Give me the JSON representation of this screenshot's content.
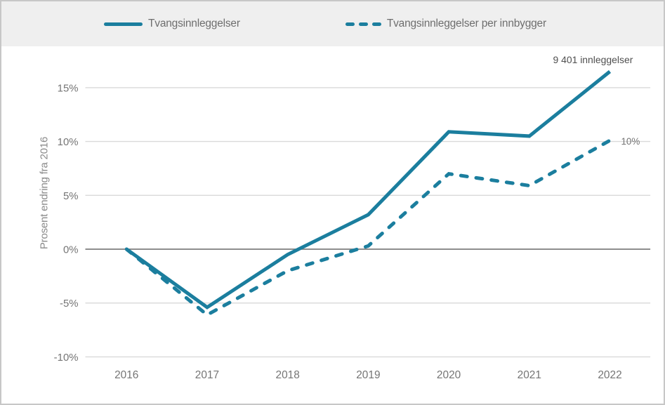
{
  "legend": {
    "items": [
      {
        "label": "Tvangsinnleggelser",
        "style": "solid"
      },
      {
        "label": "Tvangsinnleggelser per innbygger",
        "style": "dashed"
      }
    ]
  },
  "chart_data": {
    "type": "line",
    "title": "",
    "xlabel": "",
    "ylabel": "Prosent endring fra 2016",
    "categories": [
      "2016",
      "2017",
      "2018",
      "2019",
      "2020",
      "2021",
      "2022"
    ],
    "series": [
      {
        "name": "Tvangsinnleggelser",
        "style": "solid",
        "values": [
          0,
          -5.4,
          -0.5,
          3.2,
          10.9,
          10.5,
          16.5
        ]
      },
      {
        "name": "Tvangsinnleggelser per innbygger",
        "style": "dashed",
        "values": [
          0,
          -6.1,
          -2.0,
          0.3,
          7.0,
          5.9,
          10.1
        ]
      }
    ],
    "yticks": [
      15,
      10,
      5,
      0,
      -5,
      -10
    ],
    "ytick_labels": [
      "15%",
      "10%",
      "5%",
      "0%",
      "-5%",
      "-10%"
    ],
    "ylim": [
      -12.5,
      18.5
    ],
    "grid": "horizontal",
    "legend_position": "top",
    "annotations": [
      {
        "text": "9 401 innleggelser",
        "series": 0,
        "category": "2022",
        "position": "above-end"
      },
      {
        "text": "10%",
        "series": 1,
        "category": "2022",
        "position": "right-of-end"
      }
    ],
    "colors": {
      "series": "#1b7e9e",
      "gridline": "#d9d9d9",
      "zero_line": "#7d7d7d",
      "axis_text": "#757575",
      "annotation_text": "#4f4f4f",
      "legend_background": "#efefef"
    }
  }
}
